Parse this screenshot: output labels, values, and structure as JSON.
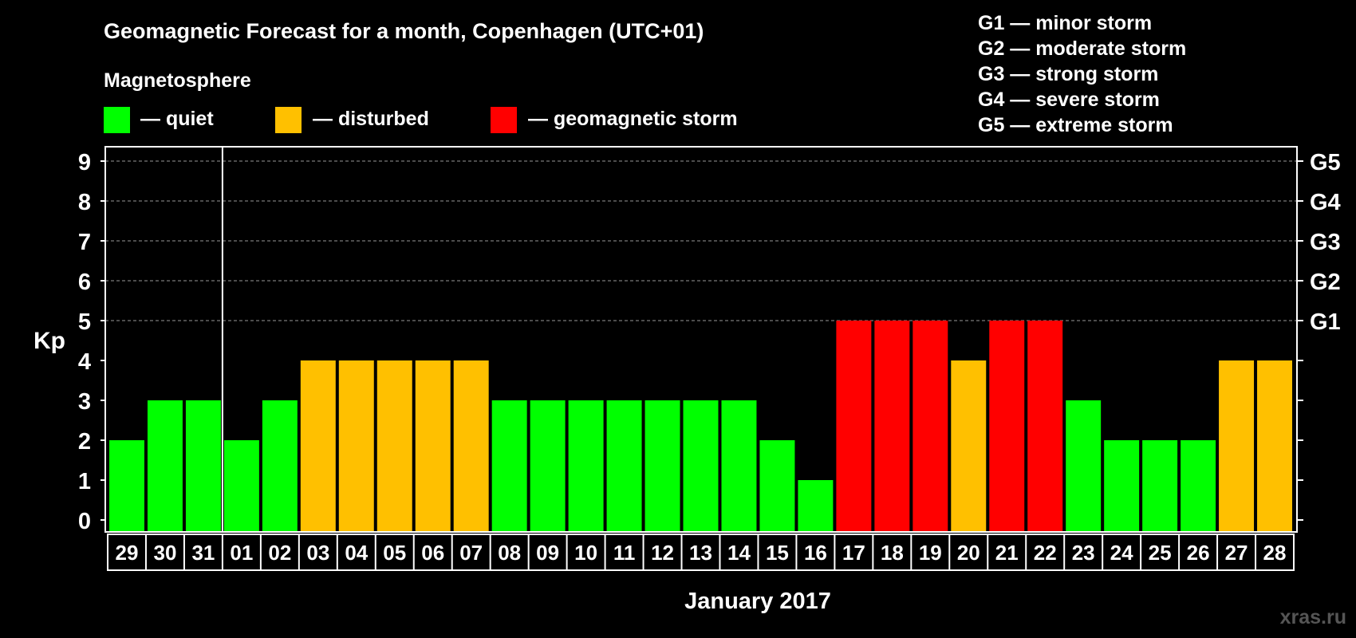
{
  "chart_data": {
    "type": "bar",
    "title": "Geomagnetic Forecast for a month, Copenhagen (UTC+01)",
    "legend_title": "Magnetosphere",
    "legend": [
      {
        "label": "— quiet",
        "color": "#00ff00"
      },
      {
        "label": "— disturbed",
        "color": "#ffc000"
      },
      {
        "label": "— geomagnetic storm",
        "color": "#ff0000"
      }
    ],
    "g_scale": [
      "G1 — minor storm",
      "G2 — moderate storm",
      "G3 — strong storm",
      "G4 — severe storm",
      "G5 — extreme storm"
    ],
    "ylabel": "Kp",
    "xlabel": "January 2017",
    "ylim": [
      0,
      9
    ],
    "yticks": [
      "0",
      "1",
      "2",
      "3",
      "4",
      "5",
      "6",
      "7",
      "8",
      "9"
    ],
    "right_ticks": [
      {
        "value": 5,
        "label": "G1"
      },
      {
        "value": 6,
        "label": "G2"
      },
      {
        "value": 7,
        "label": "G3"
      },
      {
        "value": 8,
        "label": "G4"
      },
      {
        "value": 9,
        "label": "G5"
      }
    ],
    "grid": true,
    "categories": [
      "29",
      "30",
      "31",
      "01",
      "02",
      "03",
      "04",
      "05",
      "06",
      "07",
      "08",
      "09",
      "10",
      "11",
      "12",
      "13",
      "14",
      "15",
      "16",
      "17",
      "18",
      "19",
      "20",
      "21",
      "22",
      "23",
      "24",
      "25",
      "26",
      "27",
      "28"
    ],
    "values": [
      2,
      3,
      3,
      2,
      3,
      4,
      4,
      4,
      4,
      4,
      3,
      3,
      3,
      3,
      3,
      3,
      3,
      2,
      1,
      5,
      5,
      5,
      4,
      5,
      5,
      3,
      2,
      2,
      2,
      4,
      4
    ],
    "month_separator_after": "31",
    "colors": {
      "quiet": "#00ff00",
      "disturbed": "#ffc000",
      "storm": "#ff0000"
    }
  },
  "watermark": "xras.ru"
}
